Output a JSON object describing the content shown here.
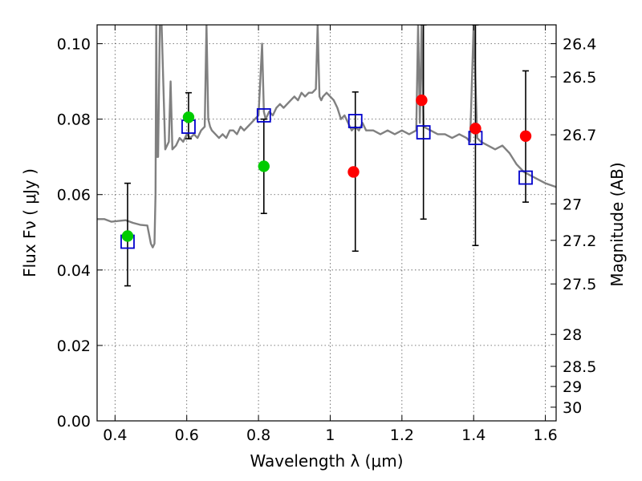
{
  "chart_data": {
    "type": "scatter",
    "title": "",
    "xlabel": "Wavelength  λ (μm)",
    "ylabel": "Flux  Fν  ( μJy )",
    "y2label": "Magnitude (AB)",
    "xlim": [
      0.35,
      1.63
    ],
    "ylim": [
      0.0,
      0.105
    ],
    "grid": true,
    "xticks": [
      0.4,
      0.6,
      0.8,
      1.0,
      1.2,
      1.4,
      1.6
    ],
    "xtick_labels": [
      "0.4",
      "0.6",
      "0.8",
      "1",
      "1.2",
      "1.4",
      "1.6"
    ],
    "yticks": [
      0.0,
      0.02,
      0.04,
      0.06,
      0.08,
      0.1
    ],
    "ytick_labels": [
      "0.00",
      "0.02",
      "0.04",
      "0.06",
      "0.08",
      "0.10"
    ],
    "y2ticks": [
      {
        "label": "26.4",
        "value": 26.4
      },
      {
        "label": "26.5",
        "value": 26.5
      },
      {
        "label": "26.7",
        "value": 26.7
      },
      {
        "label": "27",
        "value": 27.0
      },
      {
        "label": "27.2",
        "value": 27.2
      },
      {
        "label": "27.5",
        "value": 27.5
      },
      {
        "label": "28",
        "value": 28.0
      },
      {
        "label": "28.5",
        "value": 28.5
      },
      {
        "label": "29",
        "value": 29.0
      },
      {
        "label": "30",
        "value": 30.0
      }
    ],
    "colors": {
      "sed": "#808080",
      "green_points": "#00cc00",
      "red_points": "#ff0000",
      "model_boxes": "#0000cc",
      "errorbars": "#000000",
      "grid": "#555555"
    },
    "sed_model": {
      "x": [
        0.35,
        0.37,
        0.39,
        0.41,
        0.43,
        0.45,
        0.47,
        0.49,
        0.5,
        0.505,
        0.51,
        0.513,
        0.515,
        0.517,
        0.52,
        0.525,
        0.53,
        0.54,
        0.55,
        0.555,
        0.56,
        0.57,
        0.58,
        0.59,
        0.6,
        0.61,
        0.62,
        0.63,
        0.64,
        0.65,
        0.655,
        0.66,
        0.665,
        0.67,
        0.68,
        0.69,
        0.7,
        0.71,
        0.72,
        0.73,
        0.74,
        0.75,
        0.76,
        0.77,
        0.78,
        0.79,
        0.8,
        0.805,
        0.81,
        0.815,
        0.82,
        0.83,
        0.84,
        0.85,
        0.86,
        0.87,
        0.88,
        0.89,
        0.9,
        0.91,
        0.92,
        0.93,
        0.94,
        0.95,
        0.96,
        0.965,
        0.97,
        0.975,
        0.98,
        0.99,
        1.0,
        1.01,
        1.02,
        1.03,
        1.04,
        1.05,
        1.06,
        1.07,
        1.08,
        1.09,
        1.1,
        1.12,
        1.14,
        1.16,
        1.18,
        1.2,
        1.22,
        1.24,
        1.245,
        1.25,
        1.255,
        1.26,
        1.28,
        1.3,
        1.32,
        1.34,
        1.36,
        1.38,
        1.39,
        1.4,
        1.41,
        1.42,
        1.44,
        1.46,
        1.48,
        1.5,
        1.52,
        1.54,
        1.56,
        1.58,
        1.6,
        1.63
      ],
      "y": [
        0.0535,
        0.0535,
        0.0528,
        0.053,
        0.0532,
        0.0525,
        0.052,
        0.0518,
        0.047,
        0.046,
        0.047,
        0.06,
        0.105,
        0.07,
        0.07,
        0.105,
        0.105,
        0.072,
        0.074,
        0.09,
        0.072,
        0.073,
        0.075,
        0.074,
        0.076,
        0.075,
        0.076,
        0.075,
        0.077,
        0.078,
        0.105,
        0.08,
        0.078,
        0.077,
        0.076,
        0.075,
        0.076,
        0.075,
        0.077,
        0.077,
        0.076,
        0.078,
        0.077,
        0.078,
        0.079,
        0.08,
        0.081,
        0.09,
        0.1,
        0.082,
        0.08,
        0.082,
        0.081,
        0.083,
        0.084,
        0.083,
        0.084,
        0.085,
        0.086,
        0.085,
        0.087,
        0.086,
        0.087,
        0.087,
        0.088,
        0.105,
        0.086,
        0.085,
        0.086,
        0.087,
        0.086,
        0.085,
        0.083,
        0.08,
        0.081,
        0.079,
        0.077,
        0.078,
        0.077,
        0.079,
        0.077,
        0.077,
        0.076,
        0.077,
        0.076,
        0.077,
        0.076,
        0.077,
        0.105,
        0.079,
        0.105,
        0.078,
        0.077,
        0.076,
        0.076,
        0.075,
        0.076,
        0.075,
        0.074,
        0.105,
        0.075,
        0.074,
        0.073,
        0.072,
        0.073,
        0.071,
        0.068,
        0.066,
        0.065,
        0.064,
        0.063,
        0.062
      ]
    },
    "series": [
      {
        "marker": "circle",
        "color": "#00cc00",
        "x": [
          0.435,
          0.605,
          0.815
        ],
        "y": [
          0.049,
          0.0805,
          0.0675
        ]
      },
      {
        "marker": "circle",
        "color": "#ff0000",
        "x": [
          1.065,
          1.255,
          1.405,
          1.545
        ],
        "y": [
          0.066,
          0.085,
          0.0775,
          0.0755
        ]
      },
      {
        "marker": "open-square",
        "color": "#0000cc",
        "x": [
          0.435,
          0.605,
          0.815,
          1.07,
          1.26,
          1.405,
          1.545
        ],
        "y": [
          0.0475,
          0.078,
          0.081,
          0.0795,
          0.0765,
          0.075,
          0.0645
        ]
      }
    ],
    "errorbars": [
      {
        "x": 0.435,
        "low": 0.0358,
        "high": 0.063
      },
      {
        "x": 0.605,
        "low": 0.0748,
        "high": 0.087
      },
      {
        "x": 0.815,
        "low": 0.055,
        "high": 0.08
      },
      {
        "x": 1.07,
        "low": 0.045,
        "high": 0.0872
      },
      {
        "x": 1.26,
        "low": 0.0535,
        "high": 0.105
      },
      {
        "x": 1.405,
        "low": 0.0465,
        "high": 0.105
      },
      {
        "x": 1.545,
        "low": 0.058,
        "high": 0.0928
      }
    ]
  }
}
